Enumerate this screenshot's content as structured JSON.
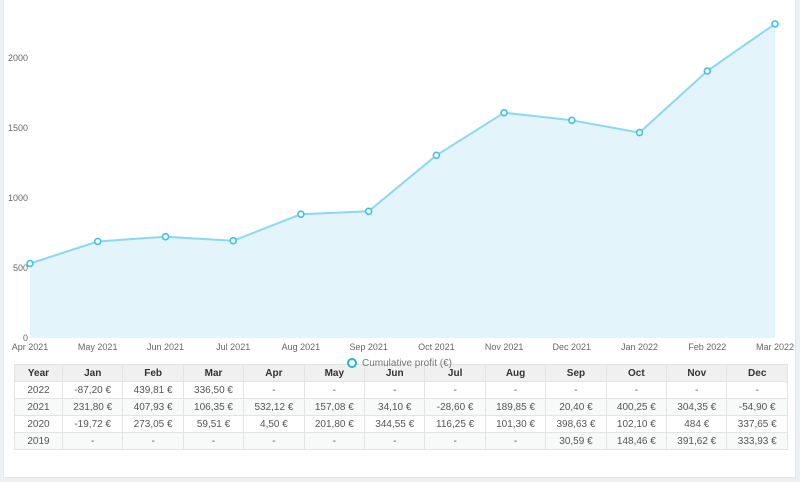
{
  "page": {
    "background": "#edf1f3",
    "card_background": "#ffffff"
  },
  "chart_data": {
    "type": "area",
    "title": "",
    "legend_label": "Cumulative profit (€)",
    "legend_position": "bottom-center",
    "categories": [
      "Apr 2021",
      "May 2021",
      "Jun 2021",
      "Jul 2021",
      "Aug 2021",
      "Sep 2021",
      "Oct 2021",
      "Nov 2021",
      "Dec 2021",
      "Jan 2022",
      "Feb 2022",
      "Mar 2022"
    ],
    "values": [
      532.12,
      689.2,
      723.3,
      694.7,
      884.55,
      904.95,
      1305.2,
      1609.55,
      1554.65,
      1467.45,
      1907.26,
      2243.76
    ],
    "yticks": [
      0,
      500,
      1000,
      1500,
      2000
    ],
    "ylim": [
      0,
      2270
    ],
    "xlabel": "",
    "ylabel": "",
    "grid": false,
    "colors": {
      "line": "#8bd8f3",
      "fill": "#e4f4fb",
      "marker_stroke": "#3fc1ea",
      "marker_fill": "#ffffff",
      "legend_ring": "#25b2e6",
      "axis_text": "#666666"
    }
  },
  "table": {
    "headers": [
      "Year",
      "Jan",
      "Feb",
      "Mar",
      "Apr",
      "May",
      "Jun",
      "Jul",
      "Aug",
      "Sep",
      "Oct",
      "Nov",
      "Dec"
    ],
    "rows": [
      {
        "year": "2022",
        "values": [
          "-87,20 €",
          "439,81 €",
          "336,50 €",
          "-",
          "-",
          "-",
          "-",
          "-",
          "-",
          "-",
          "-",
          "-"
        ]
      },
      {
        "year": "2021",
        "values": [
          "231,80 €",
          "407,93 €",
          "106,35 €",
          "532,12 €",
          "157,08 €",
          "34,10 €",
          "-28,60 €",
          "189,85 €",
          "20,40 €",
          "400,25 €",
          "304,35 €",
          "-54,90 €"
        ]
      },
      {
        "year": "2020",
        "values": [
          "-19,72 €",
          "273,05 €",
          "59,51 €",
          "4,50 €",
          "201,80 €",
          "344,55 €",
          "116,25 €",
          "101,30 €",
          "398,63 €",
          "102,10 €",
          "484 €",
          "337,65 €"
        ]
      },
      {
        "year": "2019",
        "values": [
          "-",
          "-",
          "-",
          "-",
          "-",
          "-",
          "-",
          "-",
          "30,59 €",
          "148,46 €",
          "391,62 €",
          "333,93 €"
        ]
      }
    ]
  }
}
